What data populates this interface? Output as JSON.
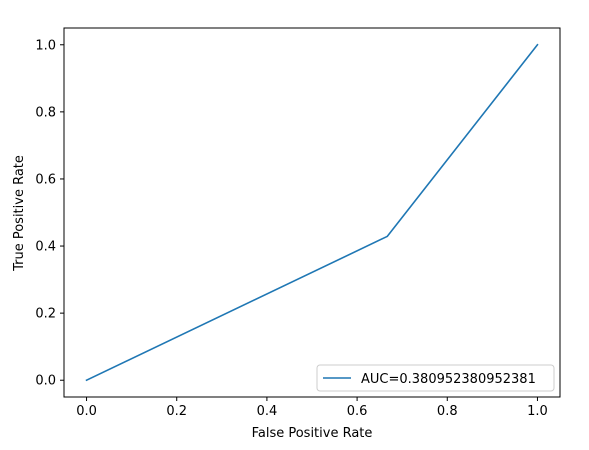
{
  "chart_data": {
    "type": "line",
    "title": "",
    "xlabel": "False Positive Rate",
    "ylabel": "True Positive Rate",
    "xlim": [
      -0.05,
      1.05
    ],
    "ylim": [
      -0.05,
      1.05
    ],
    "xticks": [
      0.0,
      0.2,
      0.4,
      0.6,
      0.8,
      1.0
    ],
    "yticks": [
      0.0,
      0.2,
      0.4,
      0.6,
      0.8,
      1.0
    ],
    "xtick_labels": [
      "0.0",
      "0.2",
      "0.4",
      "0.6",
      "0.8",
      "1.0"
    ],
    "ytick_labels": [
      "0.0",
      "0.2",
      "0.4",
      "0.6",
      "0.8",
      "1.0"
    ],
    "grid": false,
    "legend_position": "lower-right",
    "series": [
      {
        "name": "AUC=0.380952380952381",
        "color": "#1f77b4",
        "x": [
          0.0,
          0.6667,
          1.0
        ],
        "y": [
          0.0,
          0.4286,
          1.0
        ]
      }
    ]
  }
}
